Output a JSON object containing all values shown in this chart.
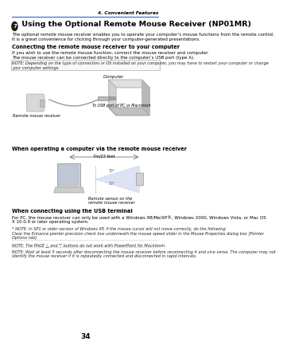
{
  "page_num": "34",
  "header_right": "4. Convenient Features",
  "section_num": "7",
  "section_title": " Using the Optional Remote Mouse Receiver (NP01MR)",
  "intro_line1": "The optional remote mouse receiver enables you to operate your computer’s mouse functions from the remote control.",
  "intro_line2": "It is a great convenience for clicking through your computer-generated presentations.",
  "subsection1_title": "Connecting the remote mouse receiver to your computer",
  "sub1_line1": "If you wish to use the remote mouse function, connect the mouse receiver and computer.",
  "sub1_line2": "The mouse receiver can be connected directly to the computer’s USB port (type A).",
  "note1_line1": "NOTE: Depending on the type of connection or OS installed on your computer, you may have to restart your computer or change",
  "note1_line2": "your computer settings.",
  "label_computer": "Computer",
  "label_remote": "Remote mouse receiver",
  "label_usb": "To USB port of PC or Macintosh",
  "subsection2_title": "When operating a computer via the remote mouse receiver",
  "distance_label": "7m/23 feet",
  "angle1": "30°",
  "angle2": "30°",
  "label_sensor": "Remote sensor on the",
  "label_sensor2": "remote mouse receiver",
  "subsection3_title": "When connecting using the USB terminal",
  "sub3_line1": "For PC, the mouse receiver can only be used with a Windows 98/Me/XP®, Windows 2000, Windows Vista, or Mac OS",
  "sub3_line2": "X 10.0.9 or later operating system.",
  "note2_line1": "* NOTE: In SP1 or older version of Windows XP, if the mouse cursor will not move correctly, do the following:",
  "note2_line2": "Clear the Enhance pointer precision check box underneath the mouse speed slider in the Mouse Properties dialog box [Pointer",
  "note2_line3": "Options tab].",
  "note3": "NOTE: The PAGE △ and ▽ buttons do not work with PowerPoint for Macintosh.",
  "note4_line1": "NOTE: Wait at least 5 seconds after disconnecting the mouse receiver before reconnecting it and vice versa. The computer may not",
  "note4_line2": "identify the mouse receiver if it is repeatedly connected and disconnected in rapid intervals.",
  "bg_color": "#ffffff",
  "header_line_color": "#3366bb",
  "text_color": "#000000",
  "note_text_color": "#333333",
  "section_circle_color": "#1a1a1a"
}
